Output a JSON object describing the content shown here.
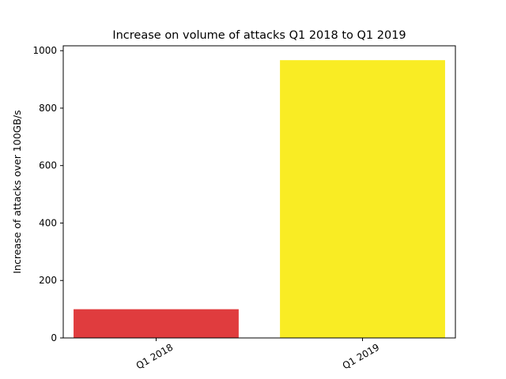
{
  "chart_data": {
    "type": "bar",
    "title": "Increase on volume of attacks Q1 2018 to Q1 2019",
    "xlabel": "",
    "ylabel": "Increase of attacks over 100GB/s",
    "categories": [
      "Q1 2018",
      "Q1 2019"
    ],
    "values": [
      100,
      967
    ],
    "colors": [
      "#e03c3e",
      "#f9ec24"
    ],
    "ylim": [
      0,
      1017
    ],
    "yticks": [
      0,
      200,
      400,
      600,
      800,
      1000
    ],
    "ytick_labels": [
      "0",
      "200",
      "400",
      "600",
      "800",
      "1000"
    ],
    "xtick_rotation": -30,
    "grid": false,
    "legend": "none"
  }
}
